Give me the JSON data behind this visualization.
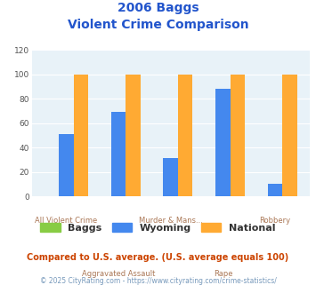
{
  "title_line1": "2006 Baggs",
  "title_line2": "Violent Crime Comparison",
  "categories": [
    "All Violent Crime",
    "Aggravated Assault",
    "Murder & Mans...",
    "Rape",
    "Robbery"
  ],
  "baggs_values": [
    0,
    0,
    0,
    0,
    0
  ],
  "wyoming_values": [
    51,
    69,
    31,
    88,
    10
  ],
  "national_values": [
    100,
    100,
    100,
    100,
    100
  ],
  "baggs_color": "#88cc44",
  "wyoming_color": "#4488ee",
  "national_color": "#ffaa33",
  "bg_color": "#ddeaf2",
  "plot_bg": "#e8f2f8",
  "ylim": [
    0,
    120
  ],
  "yticks": [
    0,
    20,
    40,
    60,
    80,
    100,
    120
  ],
  "footnote1": "Compared to U.S. average. (U.S. average equals 100)",
  "footnote2": "© 2025 CityRating.com - https://www.cityrating.com/crime-statistics/",
  "title_color": "#2255cc",
  "xlabel_color": "#aa7755",
  "footnote1_color": "#cc4400",
  "footnote2_color": "#7799bb"
}
